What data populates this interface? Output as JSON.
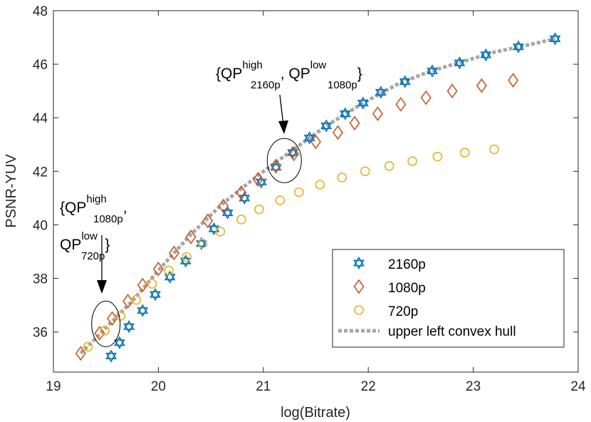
{
  "chart_data": {
    "type": "scatter",
    "title": "",
    "xlabel": "log(Bitrate)",
    "ylabel": "PSNR-YUV",
    "xlim": [
      19,
      24
    ],
    "ylim": [
      34.5,
      48
    ],
    "xticks": [
      19,
      20,
      21,
      22,
      23,
      24
    ],
    "yticks": [
      36,
      38,
      40,
      42,
      44,
      46,
      48
    ],
    "grid": false,
    "legend_position": "bottom-right",
    "series": [
      {
        "name": "2160p",
        "marker": "hexagram",
        "color": "#0072BD",
        "points": [
          [
            19.55,
            35.1
          ],
          [
            19.63,
            35.6
          ],
          [
            19.72,
            36.2
          ],
          [
            19.85,
            36.8
          ],
          [
            19.97,
            37.4
          ],
          [
            20.11,
            38.05
          ],
          [
            20.26,
            38.65
          ],
          [
            20.41,
            39.3
          ],
          [
            20.53,
            39.85
          ],
          [
            20.66,
            40.45
          ],
          [
            20.82,
            41.0
          ],
          [
            20.98,
            41.6
          ],
          [
            21.12,
            42.15
          ],
          [
            21.28,
            42.7
          ],
          [
            21.44,
            43.25
          ],
          [
            21.6,
            43.7
          ],
          [
            21.78,
            44.15
          ],
          [
            21.95,
            44.55
          ],
          [
            22.12,
            44.95
          ],
          [
            22.35,
            45.35
          ],
          [
            22.61,
            45.75
          ],
          [
            22.87,
            46.05
          ],
          [
            23.12,
            46.35
          ],
          [
            23.43,
            46.65
          ],
          [
            23.78,
            46.95
          ]
        ]
      },
      {
        "name": "1080p",
        "marker": "diamond",
        "color": "#D95319",
        "points": [
          [
            19.26,
            35.2
          ],
          [
            19.44,
            35.95
          ],
          [
            19.56,
            36.5
          ],
          [
            19.71,
            37.15
          ],
          [
            19.85,
            37.75
          ],
          [
            20.0,
            38.35
          ],
          [
            20.15,
            38.95
          ],
          [
            20.31,
            39.55
          ],
          [
            20.47,
            40.15
          ],
          [
            20.62,
            40.7
          ],
          [
            20.79,
            41.2
          ],
          [
            20.95,
            41.7
          ],
          [
            21.12,
            42.2
          ],
          [
            21.29,
            42.65
          ],
          [
            21.5,
            43.1
          ],
          [
            21.71,
            43.45
          ],
          [
            21.87,
            43.8
          ],
          [
            22.09,
            44.15
          ],
          [
            22.31,
            44.5
          ],
          [
            22.55,
            44.75
          ],
          [
            22.8,
            45.0
          ],
          [
            23.08,
            45.2
          ],
          [
            23.38,
            45.4
          ]
        ]
      },
      {
        "name": "720p",
        "marker": "circle",
        "color": "#EDB120",
        "points": [
          [
            19.33,
            35.45
          ],
          [
            19.49,
            36.05
          ],
          [
            19.64,
            36.6
          ],
          [
            19.79,
            37.2
          ],
          [
            19.94,
            37.8
          ],
          [
            20.1,
            38.3
          ],
          [
            20.27,
            38.8
          ],
          [
            20.42,
            39.3
          ],
          [
            20.59,
            39.75
          ],
          [
            20.79,
            40.2
          ],
          [
            20.96,
            40.58
          ],
          [
            21.16,
            40.92
          ],
          [
            21.34,
            41.22
          ],
          [
            21.54,
            41.5
          ],
          [
            21.75,
            41.77
          ],
          [
            21.97,
            42.0
          ],
          [
            22.2,
            42.2
          ],
          [
            22.42,
            42.38
          ],
          [
            22.66,
            42.55
          ],
          [
            22.92,
            42.7
          ],
          [
            23.2,
            42.82
          ]
        ]
      }
    ],
    "hull": {
      "name": "upper left convex hull",
      "color": "#A6A6A6",
      "style": "dotted",
      "points": [
        [
          19.26,
          35.2
        ],
        [
          19.4,
          35.75
        ],
        [
          19.56,
          36.4
        ],
        [
          19.75,
          37.15
        ],
        [
          20.0,
          38.3
        ],
        [
          20.3,
          39.6
        ],
        [
          20.6,
          40.75
        ],
        [
          20.95,
          41.85
        ],
        [
          21.3,
          42.85
        ],
        [
          21.6,
          43.7
        ],
        [
          21.95,
          44.55
        ],
        [
          22.3,
          45.3
        ],
        [
          22.6,
          45.75
        ],
        [
          22.9,
          46.1
        ],
        [
          23.2,
          46.45
        ],
        [
          23.5,
          46.7
        ],
        [
          23.78,
          46.95
        ]
      ]
    },
    "annotations": [
      {
        "id": "a1",
        "lines": [
          "{QP",
          "high",
          "2160p",
          ", QP",
          "low",
          "1080p",
          "}"
        ],
        "ellipse_center": [
          21.2,
          42.4
        ]
      },
      {
        "id": "a2",
        "line1": [
          "{QP",
          "high",
          "1080p",
          ","
        ],
        "line2": [
          "QP",
          "low",
          "720p",
          "}"
        ],
        "ellipse_center": [
          19.5,
          36.3
        ]
      }
    ]
  }
}
